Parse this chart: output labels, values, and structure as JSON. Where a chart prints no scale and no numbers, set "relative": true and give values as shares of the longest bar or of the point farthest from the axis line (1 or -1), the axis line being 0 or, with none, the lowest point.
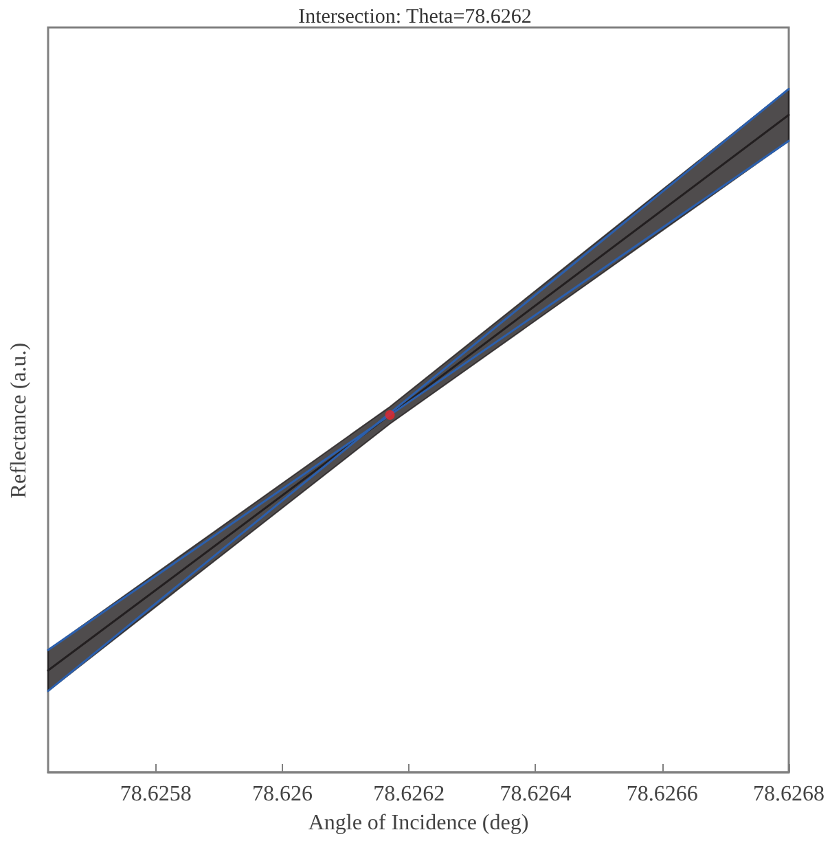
{
  "chart_data": {
    "type": "line",
    "title": "Intersection: Theta=78.6262",
    "xlabel": "Angle of Incidence (deg)",
    "ylabel": "Reflectance (a.u.)",
    "relative": true,
    "xlim": [
      78.62563,
      78.6268
    ],
    "xticks": [
      78.6258,
      78.626,
      78.6262,
      78.6264,
      78.6266,
      78.6268
    ],
    "tick_labels": "x",
    "grid": false,
    "line_style": "solid",
    "series": [
      {
        "type": "line",
        "color": "#231f20",
        "x": [
          78.62563,
          78.62617,
          78.6268
        ],
        "values": [
          0.149,
          0.523,
          0.962
        ],
        "lower": [
          0.119,
          0.51,
          0.924
        ],
        "upper": [
          0.179,
          0.535,
          1.0
        ]
      },
      {
        "color": "#2b5fad",
        "x": [
          78.62563,
          78.6268
        ],
        "values": [
          0.119,
          1.0
        ]
      },
      {
        "color": "#2b5fad",
        "x": [
          78.62563,
          78.6268
        ],
        "values": [
          0.179,
          0.924
        ]
      },
      {
        "type": "scatter",
        "color": "#e8262a",
        "marker": "circle",
        "x": [
          78.62617
        ],
        "values": [
          0.523
        ]
      }
    ]
  }
}
